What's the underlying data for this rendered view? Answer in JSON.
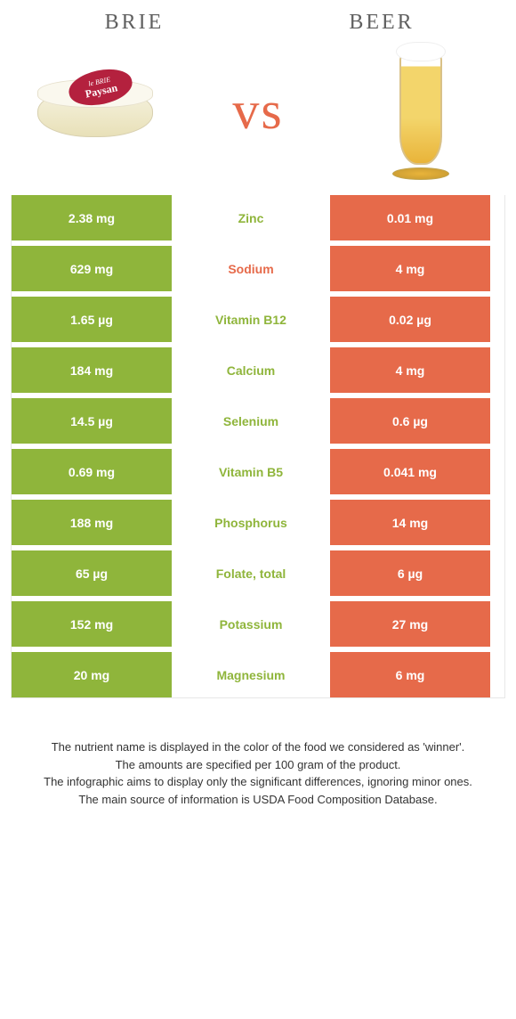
{
  "colors": {
    "left": "#8fb53b",
    "right": "#e66a4a",
    "leftText": "#ffffff",
    "rightText": "#ffffff",
    "midBg": "#ffffff"
  },
  "header": {
    "leftTitle": "Brie",
    "rightTitle": "Beer",
    "vs": "vs"
  },
  "table": {
    "rows": [
      {
        "left": "2.38 mg",
        "label": "Zinc",
        "right": "0.01 mg",
        "winner": "left"
      },
      {
        "left": "629 mg",
        "label": "Sodium",
        "right": "4 mg",
        "winner": "right"
      },
      {
        "left": "1.65 µg",
        "label": "Vitamin B12",
        "right": "0.02 µg",
        "winner": "left"
      },
      {
        "left": "184 mg",
        "label": "Calcium",
        "right": "4 mg",
        "winner": "left"
      },
      {
        "left": "14.5 µg",
        "label": "Selenium",
        "right": "0.6 µg",
        "winner": "left"
      },
      {
        "left": "0.69 mg",
        "label": "Vitamin B5",
        "right": "0.041 mg",
        "winner": "left"
      },
      {
        "left": "188 mg",
        "label": "Phosphorus",
        "right": "14 mg",
        "winner": "left"
      },
      {
        "left": "65 µg",
        "label": "Folate, total",
        "right": "6 µg",
        "winner": "left"
      },
      {
        "left": "152 mg",
        "label": "Potassium",
        "right": "27 mg",
        "winner": "left"
      },
      {
        "left": "20 mg",
        "label": "Magnesium",
        "right": "6 mg",
        "winner": "left"
      }
    ]
  },
  "footer": {
    "line1": "The nutrient name is displayed in the color of the food we considered as 'winner'.",
    "line2": "The amounts are specified per 100 gram of the product.",
    "line3": "The infographic aims to display only the significant differences, ignoring minor ones.",
    "line4": "The main source of information is USDA Food Composition Database."
  },
  "brieLabel": {
    "top": "le BRIE",
    "bottom": "Paysan"
  }
}
